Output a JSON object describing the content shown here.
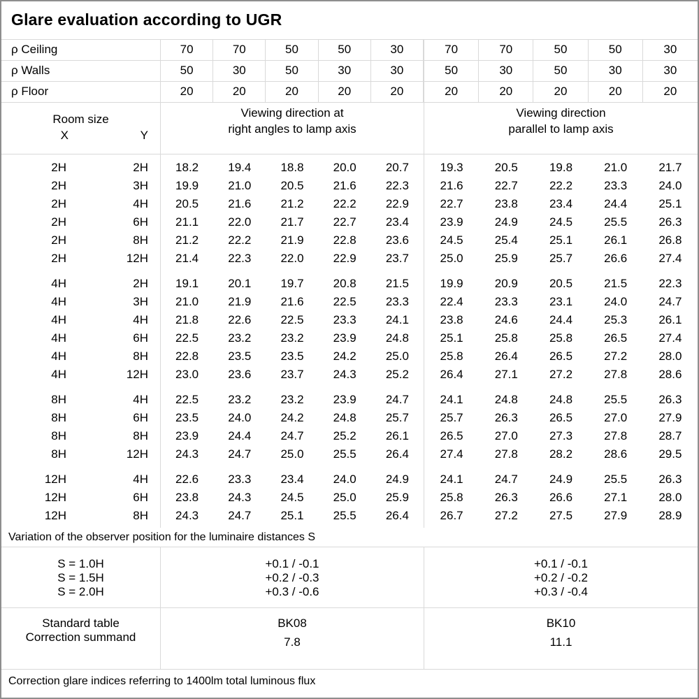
{
  "title": "Glare evaluation according to UGR",
  "reflectance_rows": [
    {
      "label": "ρ Ceiling",
      "values": [
        "70",
        "70",
        "50",
        "50",
        "30",
        "70",
        "70",
        "50",
        "50",
        "30"
      ]
    },
    {
      "label": "ρ Walls",
      "values": [
        "50",
        "30",
        "50",
        "30",
        "30",
        "50",
        "30",
        "50",
        "30",
        "30"
      ]
    },
    {
      "label": "ρ Floor",
      "values": [
        "20",
        "20",
        "20",
        "20",
        "20",
        "20",
        "20",
        "20",
        "20",
        "20"
      ]
    }
  ],
  "header": {
    "room_size": "Room size",
    "x": "X",
    "y": "Y",
    "right_angles_line1": "Viewing direction at",
    "right_angles_line2": "right angles to lamp axis",
    "parallel_line1": "Viewing direction",
    "parallel_line2": "parallel to lamp axis"
  },
  "ugr_groups": [
    {
      "rows": [
        {
          "x": "2H",
          "y": "2H",
          "values": [
            "18.2",
            "19.4",
            "18.8",
            "20.0",
            "20.7",
            "19.3",
            "20.5",
            "19.8",
            "21.0",
            "21.7"
          ]
        },
        {
          "x": "2H",
          "y": "3H",
          "values": [
            "19.9",
            "21.0",
            "20.5",
            "21.6",
            "22.3",
            "21.6",
            "22.7",
            "22.2",
            "23.3",
            "24.0"
          ]
        },
        {
          "x": "2H",
          "y": "4H",
          "values": [
            "20.5",
            "21.6",
            "21.2",
            "22.2",
            "22.9",
            "22.7",
            "23.8",
            "23.4",
            "24.4",
            "25.1"
          ]
        },
        {
          "x": "2H",
          "y": "6H",
          "values": [
            "21.1",
            "22.0",
            "21.7",
            "22.7",
            "23.4",
            "23.9",
            "24.9",
            "24.5",
            "25.5",
            "26.3"
          ]
        },
        {
          "x": "2H",
          "y": "8H",
          "values": [
            "21.2",
            "22.2",
            "21.9",
            "22.8",
            "23.6",
            "24.5",
            "25.4",
            "25.1",
            "26.1",
            "26.8"
          ]
        },
        {
          "x": "2H",
          "y": "12H",
          "values": [
            "21.4",
            "22.3",
            "22.0",
            "22.9",
            "23.7",
            "25.0",
            "25.9",
            "25.7",
            "26.6",
            "27.4"
          ]
        }
      ]
    },
    {
      "rows": [
        {
          "x": "4H",
          "y": "2H",
          "values": [
            "19.1",
            "20.1",
            "19.7",
            "20.8",
            "21.5",
            "19.9",
            "20.9",
            "20.5",
            "21.5",
            "22.3"
          ]
        },
        {
          "x": "4H",
          "y": "3H",
          "values": [
            "21.0",
            "21.9",
            "21.6",
            "22.5",
            "23.3",
            "22.4",
            "23.3",
            "23.1",
            "24.0",
            "24.7"
          ]
        },
        {
          "x": "4H",
          "y": "4H",
          "values": [
            "21.8",
            "22.6",
            "22.5",
            "23.3",
            "24.1",
            "23.8",
            "24.6",
            "24.4",
            "25.3",
            "26.1"
          ]
        },
        {
          "x": "4H",
          "y": "6H",
          "values": [
            "22.5",
            "23.2",
            "23.2",
            "23.9",
            "24.8",
            "25.1",
            "25.8",
            "25.8",
            "26.5",
            "27.4"
          ]
        },
        {
          "x": "4H",
          "y": "8H",
          "values": [
            "22.8",
            "23.5",
            "23.5",
            "24.2",
            "25.0",
            "25.8",
            "26.4",
            "26.5",
            "27.2",
            "28.0"
          ]
        },
        {
          "x": "4H",
          "y": "12H",
          "values": [
            "23.0",
            "23.6",
            "23.7",
            "24.3",
            "25.2",
            "26.4",
            "27.1",
            "27.2",
            "27.8",
            "28.6"
          ]
        }
      ]
    },
    {
      "rows": [
        {
          "x": "8H",
          "y": "4H",
          "values": [
            "22.5",
            "23.2",
            "23.2",
            "23.9",
            "24.7",
            "24.1",
            "24.8",
            "24.8",
            "25.5",
            "26.3"
          ]
        },
        {
          "x": "8H",
          "y": "6H",
          "values": [
            "23.5",
            "24.0",
            "24.2",
            "24.8",
            "25.7",
            "25.7",
            "26.3",
            "26.5",
            "27.0",
            "27.9"
          ]
        },
        {
          "x": "8H",
          "y": "8H",
          "values": [
            "23.9",
            "24.4",
            "24.7",
            "25.2",
            "26.1",
            "26.5",
            "27.0",
            "27.3",
            "27.8",
            "28.7"
          ]
        },
        {
          "x": "8H",
          "y": "12H",
          "values": [
            "24.3",
            "24.7",
            "25.0",
            "25.5",
            "26.4",
            "27.4",
            "27.8",
            "28.2",
            "28.6",
            "29.5"
          ]
        }
      ]
    },
    {
      "rows": [
        {
          "x": "12H",
          "y": "4H",
          "values": [
            "22.6",
            "23.3",
            "23.4",
            "24.0",
            "24.9",
            "24.1",
            "24.7",
            "24.9",
            "25.5",
            "26.3"
          ]
        },
        {
          "x": "12H",
          "y": "6H",
          "values": [
            "23.8",
            "24.3",
            "24.5",
            "25.0",
            "25.9",
            "25.8",
            "26.3",
            "26.6",
            "27.1",
            "28.0"
          ]
        },
        {
          "x": "12H",
          "y": "8H",
          "values": [
            "24.3",
            "24.7",
            "25.1",
            "25.5",
            "26.4",
            "26.7",
            "27.2",
            "27.5",
            "27.9",
            "28.9"
          ]
        }
      ]
    }
  ],
  "variation": {
    "note": "Variation of the observer position for the luminaire distances S",
    "rows": [
      {
        "s": "S = 1.0H",
        "right_angles": "+0.1 / -0.1",
        "parallel": "+0.1 / -0.1"
      },
      {
        "s": "S = 1.5H",
        "right_angles": "+0.2 / -0.3",
        "parallel": "+0.2 / -0.2"
      },
      {
        "s": "S = 2.0H",
        "right_angles": "+0.3 / -0.6",
        "parallel": "+0.3 / -0.4"
      }
    ]
  },
  "summary": {
    "standard_table_label": "Standard table",
    "correction_summand_label": "Correction summand",
    "right_angles": {
      "standard_table": "BK08",
      "correction_summand": "7.8"
    },
    "parallel": {
      "standard_table": "BK10",
      "correction_summand": "11.1"
    }
  },
  "footer_note": "Correction glare indices referring to 1400lm total luminous flux",
  "colors": {
    "background": "#ffffff",
    "text": "#000000",
    "grid_line": "#d9d9d9",
    "outer_border": "#8e8e8e"
  }
}
